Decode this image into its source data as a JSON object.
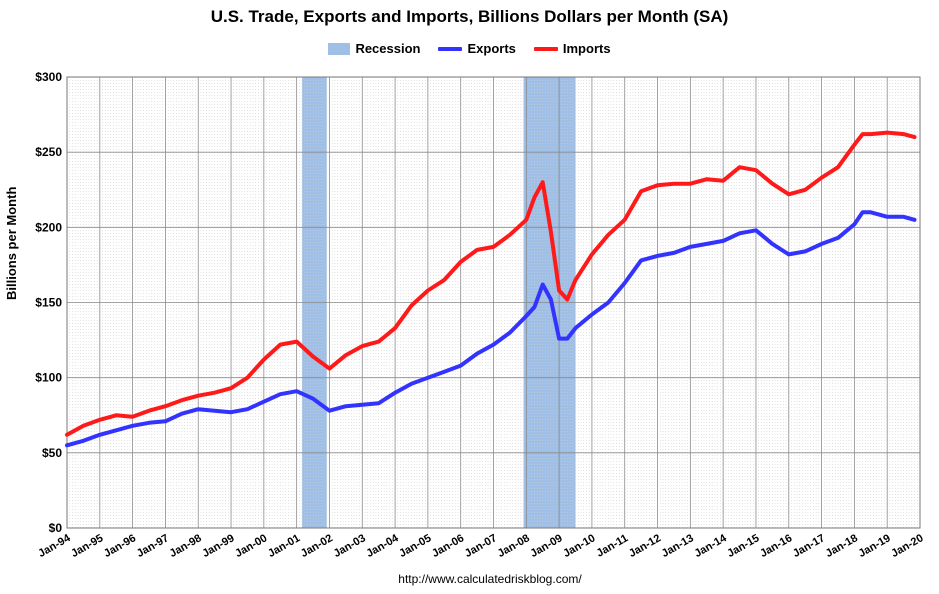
{
  "chart_data": {
    "type": "line",
    "title": "U.S. Trade, Exports and Imports, Billions Dollars per Month (SA)",
    "ylabel": "Billions per Month",
    "xlabel": "",
    "source": "http://www.calculatedriskblog.com/",
    "ylim": [
      0,
      300
    ],
    "xlim": [
      "1994-01",
      "2020-01"
    ],
    "y_ticks": [
      "$0",
      "$50",
      "$100",
      "$150",
      "$200",
      "$250",
      "$300"
    ],
    "y_tick_values": [
      0,
      50,
      100,
      150,
      200,
      250,
      300
    ],
    "x_ticks": [
      "Jan-94",
      "Jan-95",
      "Jan-96",
      "Jan-97",
      "Jan-98",
      "Jan-99",
      "Jan-00",
      "Jan-01",
      "Jan-02",
      "Jan-03",
      "Jan-04",
      "Jan-05",
      "Jan-06",
      "Jan-07",
      "Jan-08",
      "Jan-09",
      "Jan-10",
      "Jan-11",
      "Jan-12",
      "Jan-13",
      "Jan-14",
      "Jan-15",
      "Jan-16",
      "Jan-17",
      "Jan-18",
      "Jan-19",
      "Jan-20"
    ],
    "grid": true,
    "legend_position": "top-center",
    "recessions": [
      {
        "start": "2001-03",
        "end": "2001-11"
      },
      {
        "start": "2007-12",
        "end": "2009-06"
      }
    ],
    "series": [
      {
        "name": "Exports",
        "color": "#3333ff",
        "x": [
          "1994-01",
          "1994-07",
          "1995-01",
          "1995-07",
          "1996-01",
          "1996-07",
          "1997-01",
          "1997-07",
          "1998-01",
          "1998-07",
          "1999-01",
          "1999-07",
          "2000-01",
          "2000-07",
          "2001-01",
          "2001-07",
          "2002-01",
          "2002-07",
          "2003-01",
          "2003-07",
          "2004-01",
          "2004-07",
          "2005-01",
          "2005-07",
          "2006-01",
          "2006-07",
          "2007-01",
          "2007-07",
          "2008-01",
          "2008-04",
          "2008-07",
          "2008-10",
          "2009-01",
          "2009-04",
          "2009-07",
          "2010-01",
          "2010-07",
          "2011-01",
          "2011-07",
          "2012-01",
          "2012-07",
          "2013-01",
          "2013-07",
          "2014-01",
          "2014-07",
          "2015-01",
          "2015-07",
          "2016-01",
          "2016-07",
          "2017-01",
          "2017-07",
          "2018-01",
          "2018-04",
          "2018-07",
          "2019-01",
          "2019-07",
          "2019-11"
        ],
        "values": [
          55,
          58,
          62,
          65,
          68,
          70,
          71,
          76,
          79,
          78,
          77,
          79,
          84,
          89,
          91,
          86,
          78,
          81,
          82,
          83,
          90,
          96,
          100,
          104,
          108,
          116,
          122,
          130,
          141,
          147,
          162,
          152,
          126,
          126,
          133,
          142,
          150,
          163,
          178,
          181,
          183,
          187,
          189,
          191,
          196,
          198,
          189,
          182,
          184,
          189,
          193,
          202,
          210,
          210,
          207,
          207,
          205
        ]
      },
      {
        "name": "Imports",
        "color": "#ff1a1a",
        "x": [
          "1994-01",
          "1994-07",
          "1995-01",
          "1995-07",
          "1996-01",
          "1996-07",
          "1997-01",
          "1997-07",
          "1998-01",
          "1998-07",
          "1999-01",
          "1999-07",
          "2000-01",
          "2000-07",
          "2001-01",
          "2001-07",
          "2002-01",
          "2002-07",
          "2003-01",
          "2003-07",
          "2004-01",
          "2004-07",
          "2005-01",
          "2005-07",
          "2006-01",
          "2006-07",
          "2007-01",
          "2007-07",
          "2008-01",
          "2008-04",
          "2008-07",
          "2008-10",
          "2009-01",
          "2009-04",
          "2009-07",
          "2010-01",
          "2010-07",
          "2011-01",
          "2011-07",
          "2012-01",
          "2012-07",
          "2013-01",
          "2013-07",
          "2014-01",
          "2014-07",
          "2015-01",
          "2015-07",
          "2016-01",
          "2016-07",
          "2017-01",
          "2017-07",
          "2018-01",
          "2018-04",
          "2018-07",
          "2019-01",
          "2019-07",
          "2019-11"
        ],
        "values": [
          62,
          68,
          72,
          75,
          74,
          78,
          81,
          85,
          88,
          90,
          93,
          100,
          112,
          122,
          124,
          114,
          106,
          115,
          121,
          124,
          133,
          148,
          158,
          165,
          177,
          185,
          187,
          195,
          205,
          220,
          230,
          197,
          158,
          152,
          165,
          182,
          195,
          205,
          224,
          228,
          229,
          229,
          232,
          231,
          240,
          238,
          229,
          222,
          225,
          233,
          240,
          255,
          262,
          262,
          263,
          262,
          260
        ]
      }
    ]
  },
  "legend": {
    "recession_label": "Recession",
    "exports_label": "Exports",
    "imports_label": "Imports",
    "recession_color": "#9fbfe6"
  }
}
